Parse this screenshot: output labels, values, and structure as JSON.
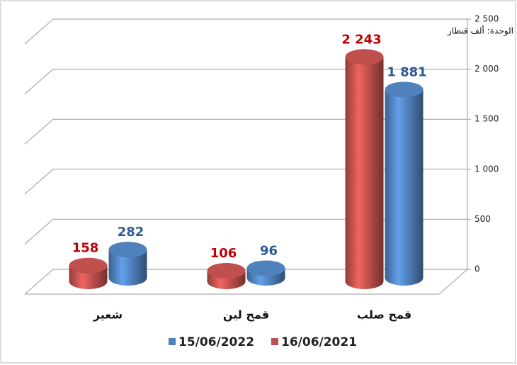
{
  "chart_data": {
    "type": "bar3d",
    "annotation": "الوحدة: ألف قنطار",
    "categories": [
      "شعير",
      "قمح لين",
      "قمح صلب"
    ],
    "series": [
      {
        "name": "16/06/2021",
        "color": "#c0504d",
        "label_color": "#c00000",
        "values": [
          158,
          106,
          2243
        ],
        "value_labels": [
          "158",
          "106",
          "2 243"
        ]
      },
      {
        "name": "15/06/2022",
        "color": "#4f81bd",
        "label_color": "#2e5b94",
        "values": [
          282,
          96,
          1881
        ],
        "value_labels": [
          "282",
          "96",
          "1 881"
        ]
      }
    ],
    "ylim": [
      0,
      2500
    ],
    "yticks": [
      0,
      500,
      {
        "value": 1000,
        "label": "1 000"
      },
      {
        "value": 1500,
        "label": "1 500"
      },
      {
        "value": 2000,
        "label": "2 000"
      },
      {
        "value": 2500,
        "label": "2 500"
      }
    ],
    "grid": true,
    "legend_order": [
      1,
      0
    ]
  }
}
